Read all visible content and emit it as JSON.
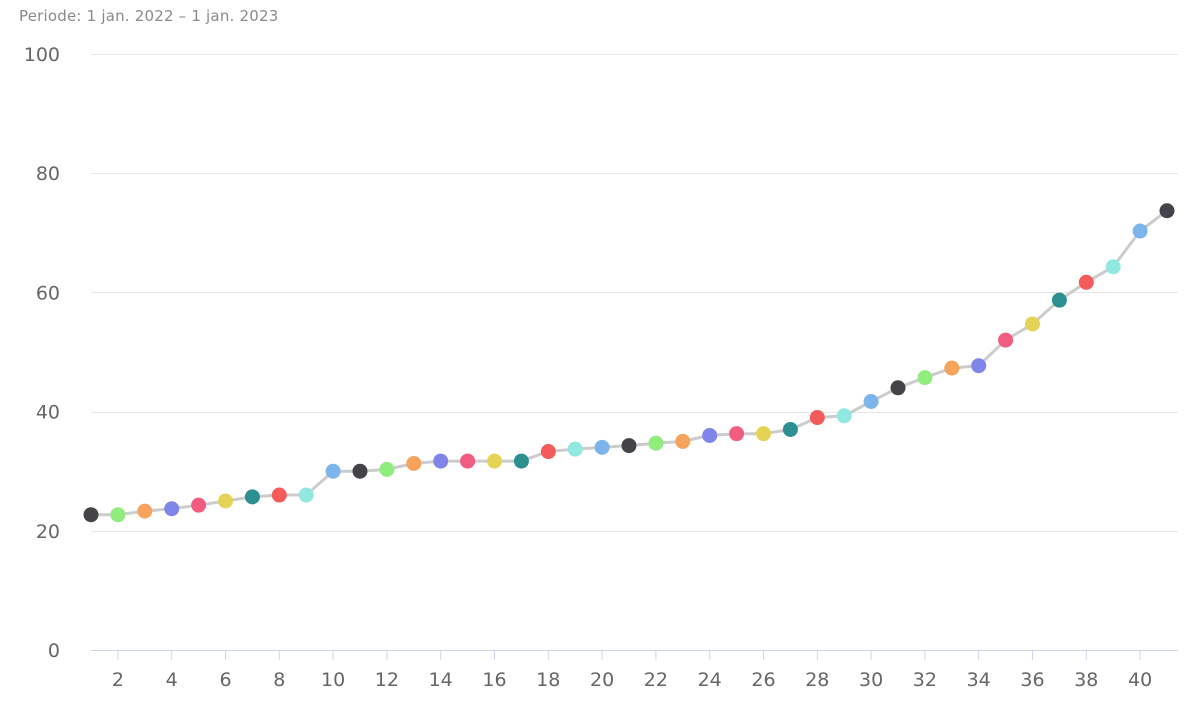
{
  "period_label": "Periode: 1 jan. 2022 – 1 jan. 2023",
  "chart_data": {
    "type": "line",
    "title": "",
    "xlabel": "",
    "ylabel": "",
    "x": [
      1,
      2,
      3,
      4,
      5,
      6,
      7,
      8,
      9,
      10,
      11,
      12,
      13,
      14,
      15,
      16,
      17,
      18,
      19,
      20,
      21,
      22,
      23,
      24,
      25,
      26,
      27,
      28,
      29,
      30,
      31,
      32,
      33,
      34,
      35,
      36,
      37,
      38,
      39,
      40,
      41
    ],
    "values": [
      22.7,
      22.7,
      23.3,
      23.7,
      24.3,
      25.0,
      25.7,
      26.0,
      26.0,
      30.0,
      30.0,
      30.3,
      31.3,
      31.7,
      31.7,
      31.7,
      31.7,
      33.3,
      33.7,
      34.0,
      34.3,
      34.7,
      35.0,
      36.0,
      36.3,
      36.3,
      37.0,
      39.0,
      39.3,
      41.7,
      44.0,
      45.7,
      47.3,
      47.7,
      52.0,
      54.7,
      58.7,
      61.7,
      64.3,
      70.3,
      73.7
    ],
    "xlim": [
      1,
      41
    ],
    "ylim": [
      0,
      100
    ],
    "y_ticks": [
      0,
      20,
      40,
      60,
      80,
      100
    ],
    "x_ticks": [
      2,
      4,
      6,
      8,
      10,
      12,
      14,
      16,
      18,
      20,
      22,
      24,
      26,
      28,
      30,
      32,
      34,
      36,
      38,
      40
    ],
    "grid": true,
    "line_color": "#cccccc",
    "point_colors": [
      "#434348",
      "#90ed7d",
      "#f7a35c",
      "#8085e9",
      "#f15c80",
      "#e4d354",
      "#2b908f",
      "#f45b5b",
      "#91e8e1",
      "#7cb5ec"
    ]
  }
}
